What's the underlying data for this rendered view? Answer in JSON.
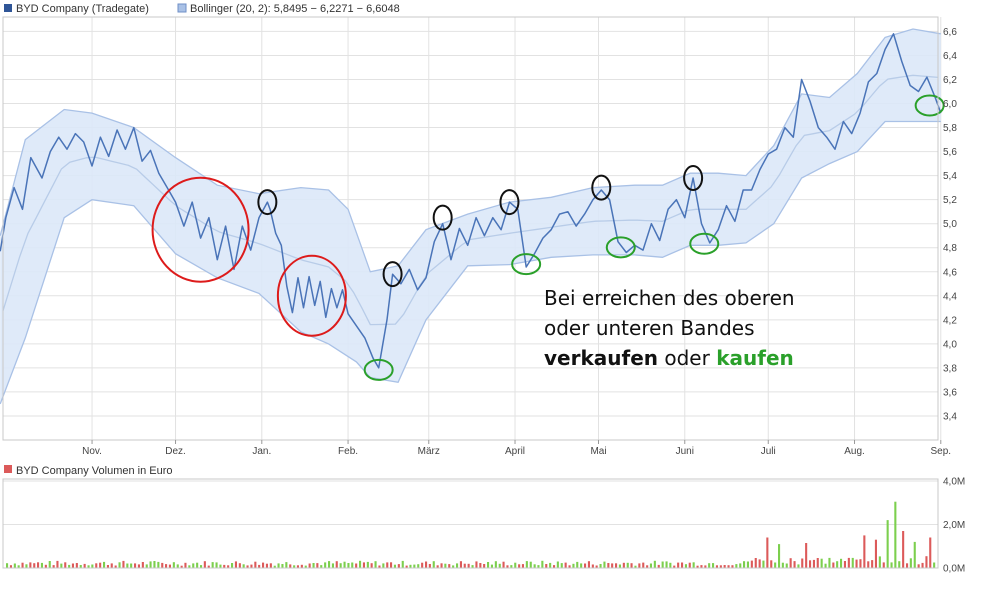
{
  "legend": {
    "price_label": "BYD Company (Tradegate)",
    "bollinger_label": "Bollinger (20, 2): 5,8495 − 6,2271 − 6,6048",
    "volume_label": "BYD Company Volumen in Euro"
  },
  "note": {
    "line1": "Bei erreichen des oberen",
    "line2": "oder unteren Bandes",
    "sell": "verkaufen",
    "or": " oder ",
    "buy": "kaufen"
  },
  "colors": {
    "price": "#4a74b8",
    "band_fill": "#dce8f8",
    "band_line": "#a9c1e6",
    "middle": "#b8cce8",
    "sell_marker": "#111111",
    "buy_marker": "#2aa02a",
    "zone_marker": "#dd1b1b",
    "vol_up": "#7ccf4e",
    "vol_down": "#dc5a5a"
  },
  "chart_data": [
    {
      "type": "line",
      "title": "BYD Company (Tradegate)",
      "x_ticks": [
        "Nov.",
        "Dez.",
        "Jan.",
        "Feb.",
        "März",
        "April",
        "Mai",
        "Juni",
        "Juli",
        "Aug.",
        "Sep."
      ],
      "y_ticks": [
        "3,4",
        "3,6",
        "3,8",
        "4,0",
        "4,2",
        "4,4",
        "4,6",
        "4,8",
        "5,0",
        "5,2",
        "5,4",
        "5,6",
        "5,8",
        "6,0",
        "6,2",
        "6,4",
        "6,6"
      ],
      "ylim": [
        3.2,
        6.72
      ],
      "grid": true,
      "x_day_range": [
        -32,
        304
      ],
      "x_tick_days": [
        0,
        30,
        61,
        92,
        121,
        152,
        182,
        213,
        243,
        274,
        305
      ],
      "price_anchors": [
        [
          -33,
          4.77
        ],
        [
          -31,
          5.05
        ],
        [
          -28,
          5.3
        ],
        [
          -25,
          5.12
        ],
        [
          -22,
          5.55
        ],
        [
          -18,
          5.38
        ],
        [
          -15,
          5.6
        ],
        [
          -12,
          5.72
        ],
        [
          -9,
          5.62
        ],
        [
          -6,
          5.75
        ],
        [
          -3,
          5.68
        ],
        [
          0,
          5.48
        ],
        [
          3,
          5.72
        ],
        [
          6,
          5.56
        ],
        [
          9,
          5.78
        ],
        [
          12,
          5.62
        ],
        [
          15,
          5.8
        ],
        [
          18,
          5.52
        ],
        [
          21,
          5.61
        ],
        [
          24,
          5.42
        ],
        [
          27,
          5.3
        ],
        [
          30,
          5.18
        ],
        [
          33,
          4.98
        ],
        [
          36,
          5.18
        ],
        [
          39,
          4.88
        ],
        [
          42,
          5.05
        ],
        [
          45,
          4.7
        ],
        [
          48,
          4.98
        ],
        [
          51,
          4.62
        ],
        [
          54,
          4.98
        ],
        [
          57,
          4.78
        ],
        [
          60,
          5.05
        ],
        [
          63,
          5.18
        ],
        [
          64,
          5.12
        ],
        [
          66,
          4.92
        ],
        [
          68,
          4.82
        ],
        [
          70,
          4.48
        ],
        [
          72,
          4.26
        ],
        [
          74,
          4.55
        ],
        [
          76,
          4.3
        ],
        [
          78,
          4.56
        ],
        [
          80,
          4.32
        ],
        [
          82,
          4.52
        ],
        [
          84,
          4.22
        ],
        [
          86,
          4.46
        ],
        [
          88,
          4.3
        ],
        [
          90,
          4.45
        ],
        [
          92,
          4.25
        ],
        [
          95,
          4.15
        ],
        [
          98,
          4.05
        ],
        [
          101,
          3.88
        ],
        [
          103,
          3.8
        ],
        [
          106,
          4.2
        ],
        [
          108,
          4.58
        ],
        [
          111,
          4.5
        ],
        [
          114,
          4.62
        ],
        [
          117,
          4.45
        ],
        [
          120,
          4.55
        ],
        [
          123,
          4.85
        ],
        [
          126,
          5.0
        ],
        [
          129,
          4.7
        ],
        [
          132,
          4.96
        ],
        [
          135,
          4.82
        ],
        [
          138,
          5.05
        ],
        [
          141,
          4.9
        ],
        [
          144,
          5.05
        ],
        [
          147,
          4.95
        ],
        [
          150,
          5.18
        ],
        [
          153,
          5.12
        ],
        [
          156,
          4.64
        ],
        [
          159,
          4.75
        ],
        [
          162,
          4.88
        ],
        [
          165,
          4.95
        ],
        [
          168,
          5.08
        ],
        [
          171,
          5.1
        ],
        [
          174,
          4.98
        ],
        [
          177,
          5.08
        ],
        [
          180,
          5.2
        ],
        [
          183,
          5.28
        ],
        [
          186,
          5.2
        ],
        [
          189,
          4.85
        ],
        [
          192,
          4.76
        ],
        [
          195,
          4.82
        ],
        [
          198,
          4.78
        ],
        [
          201,
          5.0
        ],
        [
          204,
          4.86
        ],
        [
          207,
          5.12
        ],
        [
          210,
          5.2
        ],
        [
          213,
          5.05
        ],
        [
          216,
          5.38
        ],
        [
          219,
          5.0
        ],
        [
          222,
          4.84
        ],
        [
          225,
          4.95
        ],
        [
          228,
          5.15
        ],
        [
          231,
          5.02
        ],
        [
          234,
          5.28
        ],
        [
          237,
          5.28
        ],
        [
          240,
          5.45
        ],
        [
          243,
          5.58
        ],
        [
          246,
          5.62
        ],
        [
          249,
          5.8
        ],
        [
          252,
          5.72
        ],
        [
          255,
          6.2
        ],
        [
          258,
          6.02
        ],
        [
          261,
          5.8
        ],
        [
          264,
          5.72
        ],
        [
          267,
          5.62
        ],
        [
          270,
          5.85
        ],
        [
          273,
          5.75
        ],
        [
          276,
          5.92
        ],
        [
          279,
          6.18
        ],
        [
          282,
          6.25
        ],
        [
          285,
          6.45
        ],
        [
          288,
          6.58
        ],
        [
          291,
          6.35
        ],
        [
          294,
          6.15
        ],
        [
          297,
          6.1
        ],
        [
          300,
          6.22
        ],
        [
          303,
          6.05
        ],
        [
          305,
          5.92
        ]
      ],
      "bollinger": {
        "period": 20,
        "upper_anchors": [
          [
            -33,
            4.9
          ],
          [
            -24,
            5.7
          ],
          [
            -10,
            5.95
          ],
          [
            0,
            5.92
          ],
          [
            15,
            5.8
          ],
          [
            30,
            5.55
          ],
          [
            45,
            5.32
          ],
          [
            60,
            5.25
          ],
          [
            75,
            5.3
          ],
          [
            85,
            5.28
          ],
          [
            92,
            5.12
          ],
          [
            100,
            4.6
          ],
          [
            110,
            4.65
          ],
          [
            120,
            4.95
          ],
          [
            135,
            5.08
          ],
          [
            150,
            5.18
          ],
          [
            165,
            5.22
          ],
          [
            180,
            5.3
          ],
          [
            195,
            5.32
          ],
          [
            205,
            5.32
          ],
          [
            215,
            5.42
          ],
          [
            225,
            5.42
          ],
          [
            235,
            5.4
          ],
          [
            245,
            5.65
          ],
          [
            255,
            6.08
          ],
          [
            265,
            6.05
          ],
          [
            275,
            6.25
          ],
          [
            285,
            6.55
          ],
          [
            295,
            6.62
          ],
          [
            305,
            6.58
          ]
        ],
        "lower_anchors": [
          [
            -33,
            3.5
          ],
          [
            -24,
            4.05
          ],
          [
            -10,
            5.05
          ],
          [
            0,
            5.2
          ],
          [
            15,
            5.15
          ],
          [
            30,
            4.75
          ],
          [
            45,
            4.55
          ],
          [
            60,
            4.42
          ],
          [
            75,
            4.1
          ],
          [
            85,
            4.0
          ],
          [
            95,
            3.85
          ],
          [
            100,
            3.72
          ],
          [
            110,
            3.68
          ],
          [
            120,
            4.2
          ],
          [
            135,
            4.65
          ],
          [
            150,
            4.66
          ],
          [
            165,
            4.72
          ],
          [
            180,
            4.74
          ],
          [
            195,
            4.74
          ],
          [
            205,
            4.72
          ],
          [
            215,
            4.82
          ],
          [
            225,
            4.82
          ],
          [
            235,
            4.84
          ],
          [
            245,
            5.0
          ],
          [
            255,
            5.38
          ],
          [
            265,
            5.5
          ],
          [
            275,
            5.6
          ],
          [
            285,
            5.85
          ],
          [
            295,
            5.85
          ],
          [
            305,
            5.85
          ]
        ],
        "last_values": {
          "lower": 5.8495,
          "middle": 6.2271,
          "upper": 6.6048
        }
      },
      "annotations": [
        {
          "kind": "sell",
          "shape": "ellipse",
          "day": 63,
          "value": 5.18
        },
        {
          "kind": "buy",
          "shape": "ellipse",
          "day": 103,
          "value": 3.8
        },
        {
          "kind": "sell",
          "shape": "ellipse",
          "day": 108,
          "value": 4.58
        },
        {
          "kind": "sell",
          "shape": "ellipse",
          "day": 126,
          "value": 5.05
        },
        {
          "kind": "sell",
          "shape": "ellipse",
          "day": 150,
          "value": 5.18
        },
        {
          "kind": "buy",
          "shape": "ellipse",
          "day": 156,
          "value": 4.68
        },
        {
          "kind": "sell",
          "shape": "ellipse",
          "day": 183,
          "value": 5.3
        },
        {
          "kind": "buy",
          "shape": "ellipse",
          "day": 190,
          "value": 4.82
        },
        {
          "kind": "sell",
          "shape": "ellipse",
          "day": 216,
          "value": 5.38
        },
        {
          "kind": "buy",
          "shape": "ellipse",
          "day": 220,
          "value": 4.85
        },
        {
          "kind": "buy",
          "shape": "ellipse",
          "day": 301,
          "value": 6.0
        },
        {
          "kind": "zone",
          "shape": "circle",
          "day": 39,
          "value": 4.95
        },
        {
          "kind": "zone",
          "shape": "circle",
          "day": 79,
          "value": 4.4
        }
      ]
    },
    {
      "type": "bar",
      "title": "BYD Company Volumen in Euro",
      "y_ticks": [
        "0,0M",
        "2,0M",
        "4,0M"
      ],
      "ylim": [
        0,
        4000000
      ],
      "unit": "Euro",
      "bar_count": 240,
      "volume_base": 260000,
      "volume_spikes": [
        {
          "index": 196,
          "value": 1400000
        },
        {
          "index": 199,
          "value": 1100000
        },
        {
          "index": 206,
          "value": 1150000
        },
        {
          "index": 221,
          "value": 1500000
        },
        {
          "index": 224,
          "value": 1300000
        },
        {
          "index": 227,
          "value": 2200000
        },
        {
          "index": 229,
          "value": 3050000
        },
        {
          "index": 231,
          "value": 1700000
        },
        {
          "index": 234,
          "value": 1200000
        },
        {
          "index": 238,
          "value": 1400000
        }
      ]
    }
  ]
}
